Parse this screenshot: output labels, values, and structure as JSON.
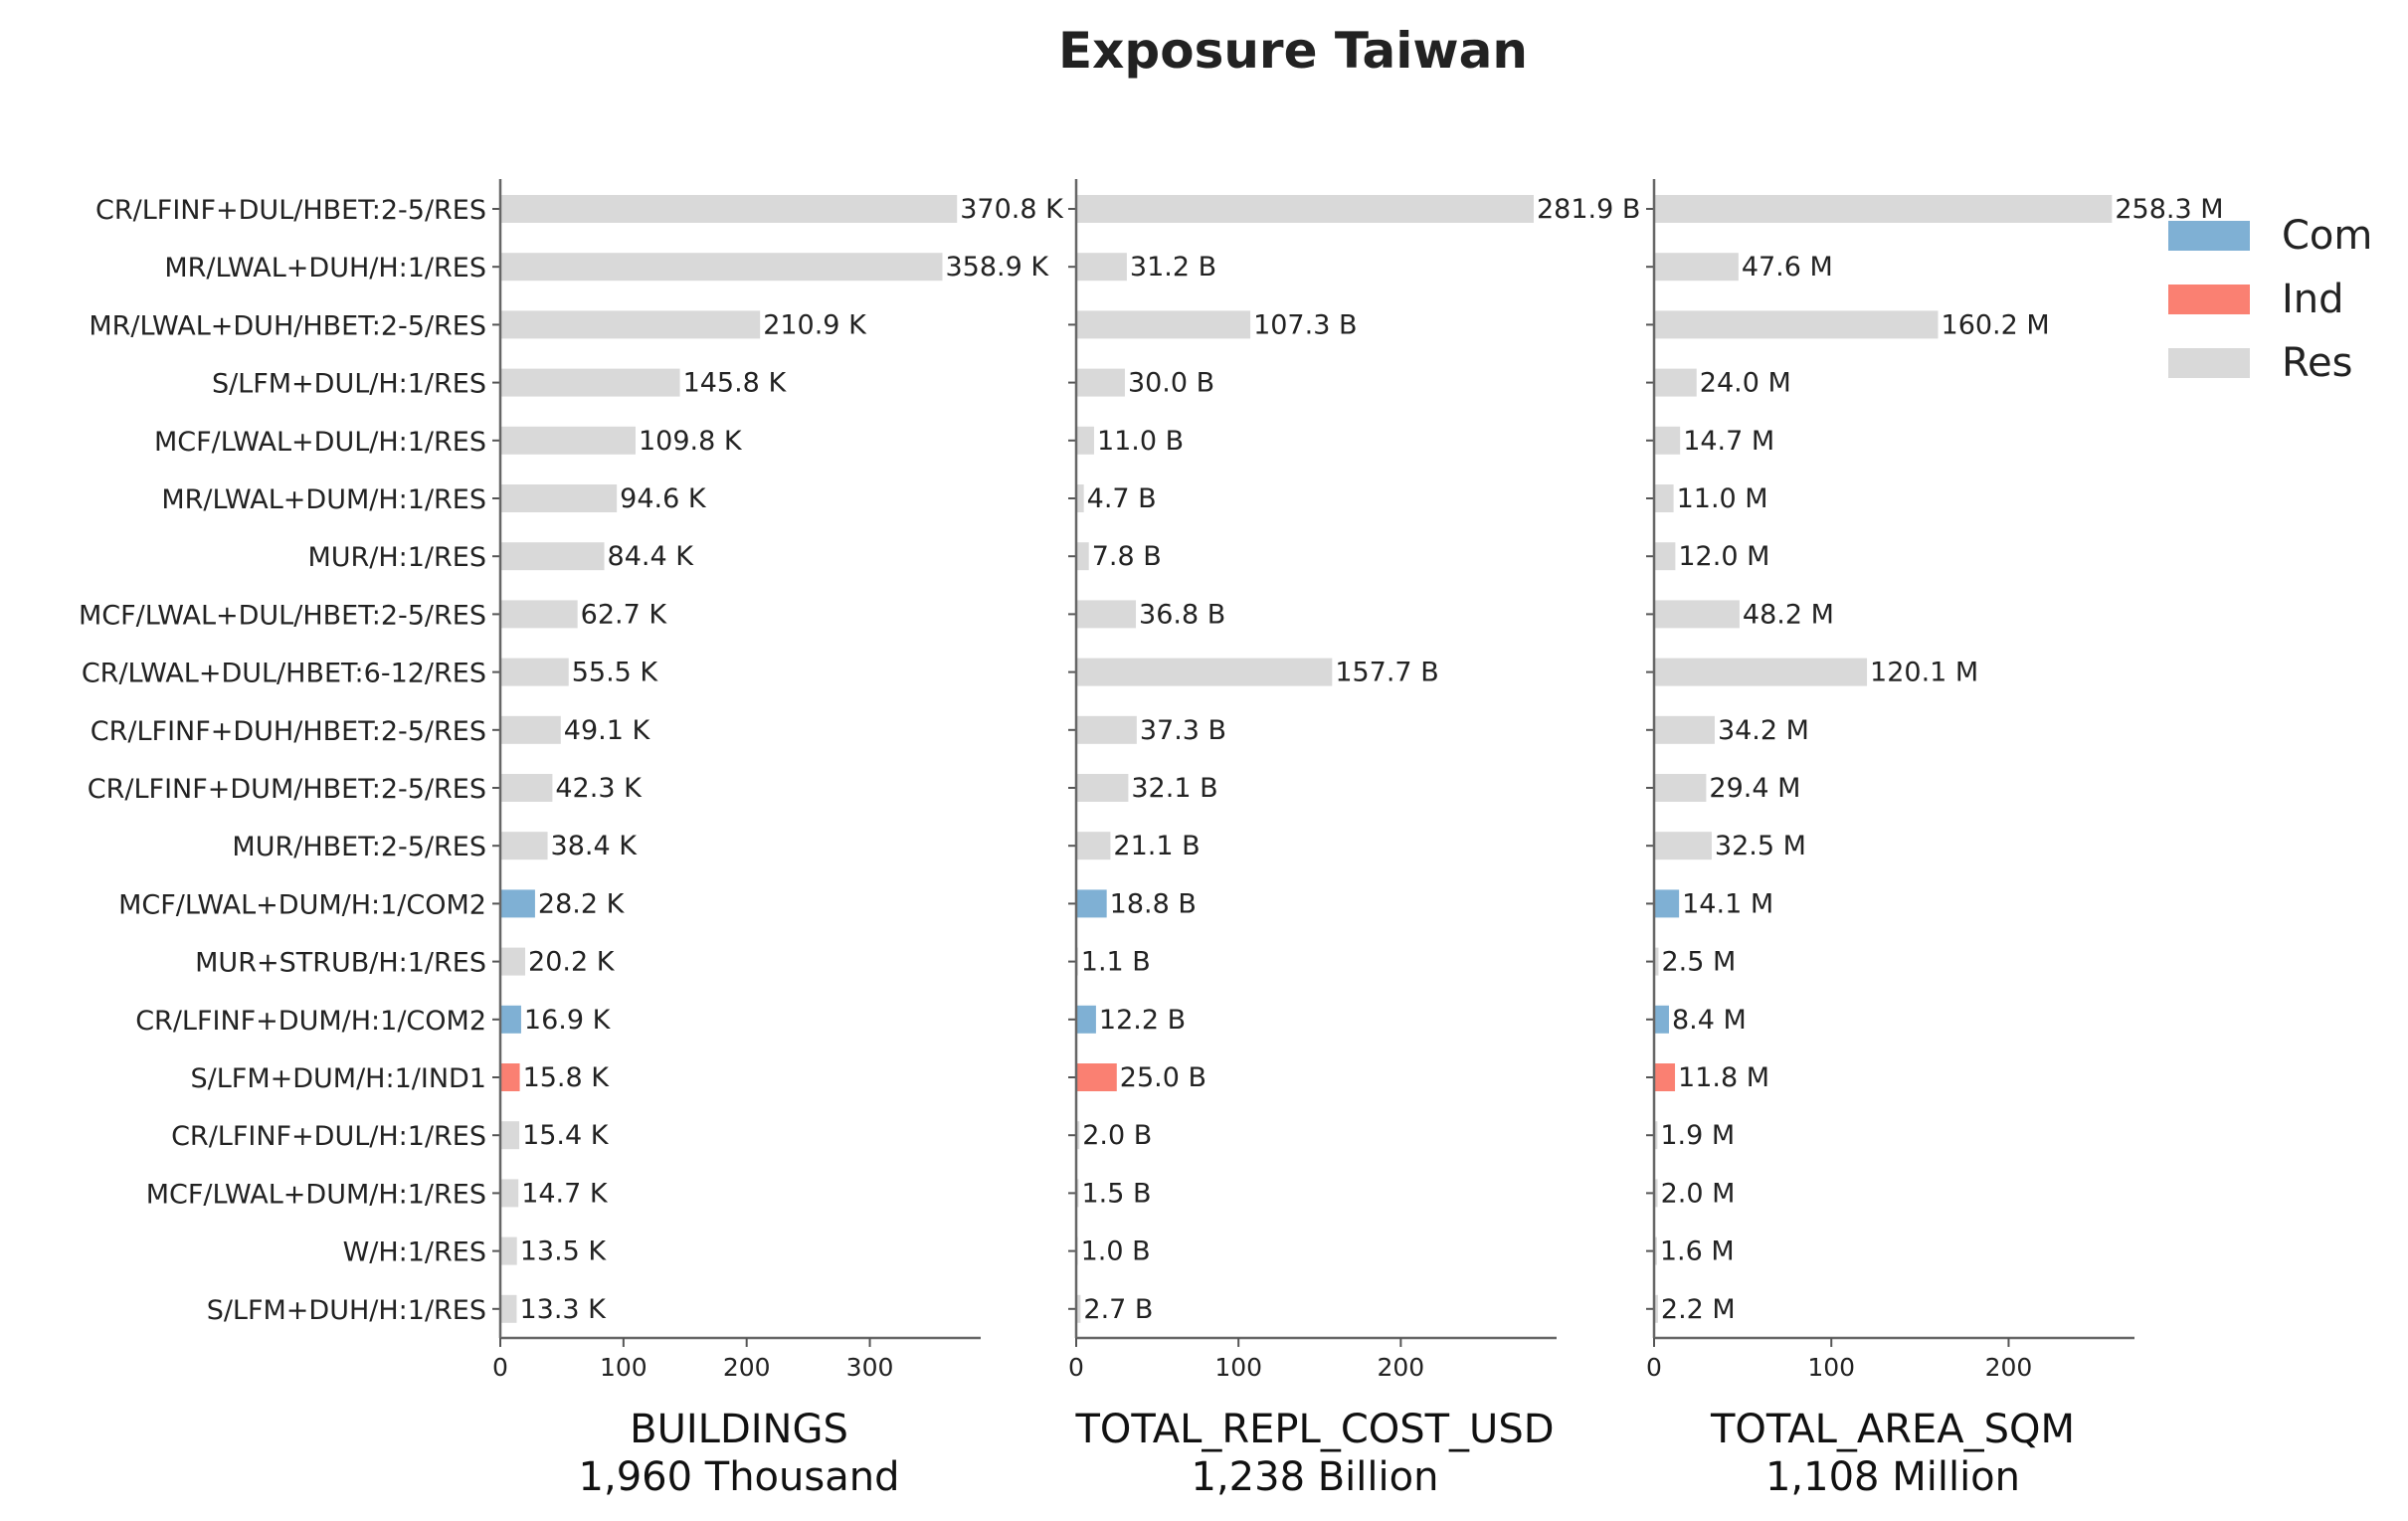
{
  "chart_data": {
    "type": "bar",
    "title": "Exposure Taiwan",
    "categories": [
      "CR/LFINF+DUL/HBET:2-5/RES",
      "MR/LWAL+DUH/H:1/RES",
      "MR/LWAL+DUH/HBET:2-5/RES",
      "S/LFM+DUL/H:1/RES",
      "MCF/LWAL+DUL/H:1/RES",
      "MR/LWAL+DUM/H:1/RES",
      "MUR/H:1/RES",
      "MCF/LWAL+DUL/HBET:2-5/RES",
      "CR/LWAL+DUL/HBET:6-12/RES",
      "CR/LFINF+DUH/HBET:2-5/RES",
      "CR/LFINF+DUM/HBET:2-5/RES",
      "MUR/HBET:2-5/RES",
      "MCF/LWAL+DUM/H:1/COM2",
      "MUR+STRUB/H:1/RES",
      "CR/LFINF+DUM/H:1/COM2",
      "S/LFM+DUM/H:1/IND1",
      "CR/LFINF+DUL/H:1/RES",
      "MCF/LWAL+DUM/H:1/RES",
      "W/H:1/RES",
      "S/LFM+DUH/H:1/RES"
    ],
    "occupancy": [
      "Res",
      "Res",
      "Res",
      "Res",
      "Res",
      "Res",
      "Res",
      "Res",
      "Res",
      "Res",
      "Res",
      "Res",
      "Com",
      "Res",
      "Com",
      "Ind",
      "Res",
      "Res",
      "Res",
      "Res"
    ],
    "legend": {
      "position": "top-right",
      "entries": [
        {
          "name": "Com",
          "color": "#7fb0d4"
        },
        {
          "name": "Ind",
          "color": "#fa8072"
        },
        {
          "name": "Res",
          "color": "#d9d9d9"
        }
      ]
    },
    "panels": [
      {
        "xlabel": "BUILDINGS",
        "total": "1,960 Thousand",
        "xlim": [
          0,
          390
        ],
        "xticks": [
          0,
          100,
          200,
          300
        ],
        "values": [
          370.8,
          358.9,
          210.9,
          145.8,
          109.8,
          94.6,
          84.4,
          62.7,
          55.5,
          49.1,
          42.3,
          38.4,
          28.2,
          20.2,
          16.9,
          15.8,
          15.4,
          14.7,
          13.5,
          13.3
        ],
        "labels": [
          "370.8 K",
          "358.9 K",
          "210.9 K",
          "145.8 K",
          "109.8 K",
          "94.6 K",
          "84.4 K",
          "62.7 K",
          "55.5 K",
          "49.1 K",
          "42.3 K",
          "38.4 K",
          "28.2 K",
          "20.2 K",
          "16.9 K",
          "15.8 K",
          "15.4 K",
          "14.7 K",
          "13.5 K",
          "13.3 K"
        ]
      },
      {
        "xlabel": "TOTAL_REPL_COST_USD",
        "total": "1,238 Billion",
        "xlim": [
          0,
          296
        ],
        "xticks": [
          0,
          100,
          200
        ],
        "values": [
          281.9,
          31.2,
          107.3,
          30.0,
          11.0,
          4.7,
          7.8,
          36.8,
          157.7,
          37.3,
          32.1,
          21.1,
          18.8,
          1.1,
          12.2,
          25.0,
          2.0,
          1.5,
          1.0,
          2.7
        ],
        "labels": [
          "281.9 B",
          "31.2 B",
          "107.3 B",
          "30.0 B",
          "11.0 B",
          "4.7 B",
          "7.8 B",
          "36.8 B",
          "157.7 B",
          "37.3 B",
          "32.1 B",
          "21.1 B",
          "18.8 B",
          "1.1 B",
          "12.2 B",
          "25.0 B",
          "2.0 B",
          "1.5 B",
          "1.0 B",
          "2.7 B"
        ]
      },
      {
        "xlabel": "TOTAL_AREA_SQM",
        "total": "1,108 Million",
        "xlim": [
          0,
          271
        ],
        "xticks": [
          0,
          100,
          200
        ],
        "values": [
          258.3,
          47.6,
          160.2,
          24.0,
          14.7,
          11.0,
          12.0,
          48.2,
          120.1,
          34.2,
          29.4,
          32.5,
          14.1,
          2.5,
          8.4,
          11.8,
          1.9,
          2.0,
          1.6,
          2.2
        ],
        "labels": [
          "258.3 M",
          "47.6 M",
          "160.2 M",
          "24.0 M",
          "14.7 M",
          "11.0 M",
          "12.0 M",
          "48.2 M",
          "120.1 M",
          "34.2 M",
          "29.4 M",
          "32.5 M",
          "14.1 M",
          "2.5 M",
          "8.4 M",
          "11.8 M",
          "1.9 M",
          "2.0 M",
          "1.6 M",
          "2.2 M"
        ]
      }
    ]
  }
}
